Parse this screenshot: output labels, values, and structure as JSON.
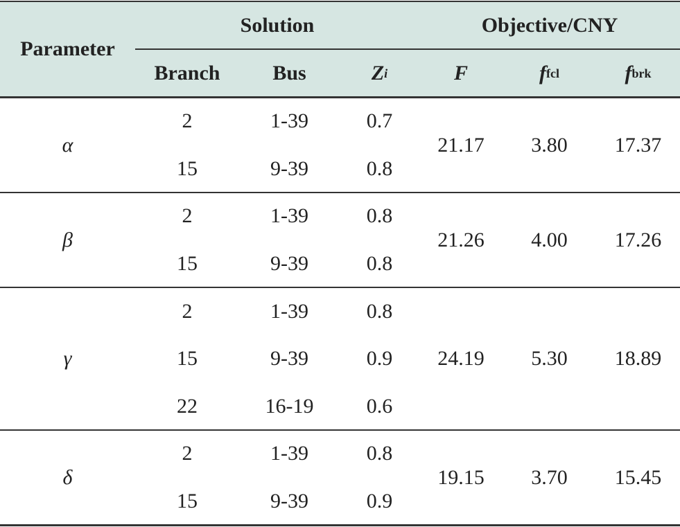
{
  "table": {
    "header": {
      "parameter": "Parameter",
      "solution": "Solution",
      "objective": "Objective/CNY",
      "columns": [
        {
          "text": "Branch"
        },
        {
          "text": "Bus"
        },
        {
          "text": "Z",
          "sub": "i"
        },
        {
          "text": "F"
        },
        {
          "text": "f",
          "sub": "fcl"
        },
        {
          "text": "f",
          "sub": "brk"
        }
      ]
    },
    "groups": [
      {
        "parameter": "α",
        "rows": [
          [
            "2",
            "1-39",
            "0.7"
          ],
          [
            "15",
            "9-39",
            "0.8"
          ]
        ],
        "F": "21.17",
        "f_fcl": "3.80",
        "f_brk": "17.37"
      },
      {
        "parameter": "β",
        "rows": [
          [
            "2",
            "1-39",
            "0.8"
          ],
          [
            "15",
            "9-39",
            "0.8"
          ]
        ],
        "F": "21.26",
        "f_fcl": "4.00",
        "f_brk": "17.26"
      },
      {
        "parameter": "γ",
        "rows": [
          [
            "2",
            "1-39",
            "0.8"
          ],
          [
            "15",
            "9-39",
            "0.9"
          ],
          [
            "22",
            "16-19",
            "0.6"
          ]
        ],
        "F": "24.19",
        "f_fcl": "5.30",
        "f_brk": "18.89"
      },
      {
        "parameter": "δ",
        "rows": [
          [
            "2",
            "1-39",
            "0.8"
          ],
          [
            "15",
            "9-39",
            "0.9"
          ]
        ],
        "F": "19.15",
        "f_fcl": "3.70",
        "f_brk": "15.45"
      }
    ]
  }
}
